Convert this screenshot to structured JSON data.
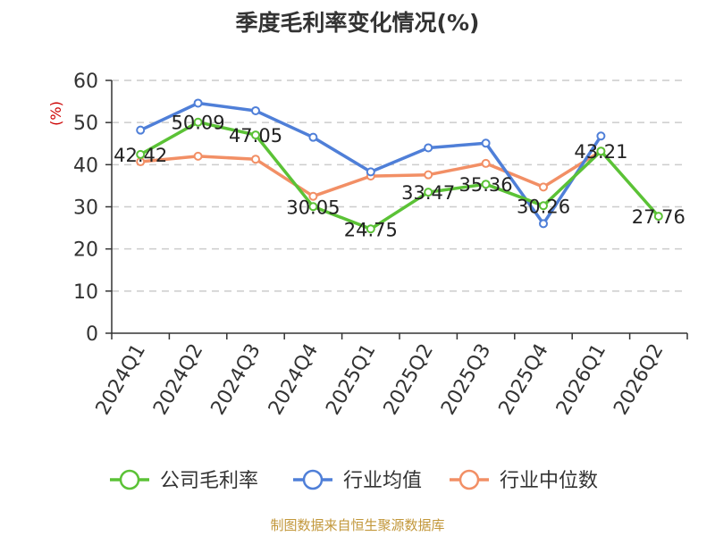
{
  "chart_data": {
    "type": "line",
    "title": "季度毛利率变化情况(%)",
    "ylabel": "(%)",
    "xlabel": "",
    "ylim": [
      0,
      60
    ],
    "yticks": [
      0,
      10,
      20,
      30,
      40,
      50,
      60
    ],
    "categories": [
      "2024Q1",
      "2024Q2",
      "2024Q3",
      "2024Q4",
      "2025Q1",
      "2025Q2",
      "2025Q3",
      "2025Q4",
      "2026Q1",
      "2026Q2"
    ],
    "grid": true,
    "legend_position": "bottom",
    "series": [
      {
        "name": "公司毛利率",
        "color": "#5bc236",
        "values": [
          42.42,
          50.09,
          47.05,
          30.05,
          24.75,
          33.47,
          35.36,
          30.26,
          43.21,
          27.76
        ],
        "labels": [
          "42.42",
          "50.09",
          "47.05",
          "30.05",
          "24.75",
          "33.47",
          "35.36",
          "30.26",
          "43.21",
          "27.76"
        ]
      },
      {
        "name": "行业均值",
        "color": "#4f7fd8",
        "values": [
          48.2,
          54.6,
          52.8,
          46.5,
          38.3,
          44.0,
          45.1,
          26.0,
          46.8,
          null
        ]
      },
      {
        "name": "行业中位数",
        "color": "#f28f65",
        "values": [
          40.7,
          42.0,
          41.3,
          32.5,
          37.3,
          37.6,
          40.3,
          34.7,
          43.2,
          null
        ]
      }
    ]
  },
  "source": "制图数据来自恒生聚源数据库"
}
